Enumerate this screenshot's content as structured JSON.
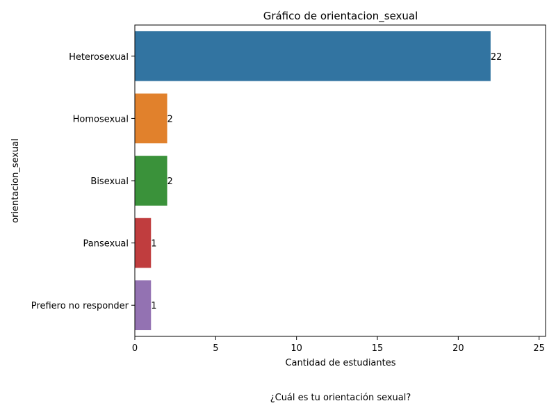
{
  "chart_data": {
    "type": "bar",
    "orientation": "horizontal",
    "title": "Gráfico de orientacion_sexual",
    "xlabel": "Cantidad de estudiantes",
    "ylabel": "orientacion_sexual",
    "categories": [
      "Heterosexual",
      "Homosexual",
      "Bisexual",
      "Pansexual",
      "Prefiero no responder"
    ],
    "values": [
      22,
      2,
      2,
      1,
      1
    ],
    "colors": [
      "#3274a1",
      "#e1812c",
      "#3a923a",
      "#c03d3e",
      "#9372b2"
    ],
    "xlim": [
      0,
      25.4
    ],
    "xticks": [
      0,
      5,
      10,
      15,
      20,
      25
    ],
    "grid": false,
    "data_labels": true
  },
  "caption": "¿Cuál es tu orientación sexual?"
}
